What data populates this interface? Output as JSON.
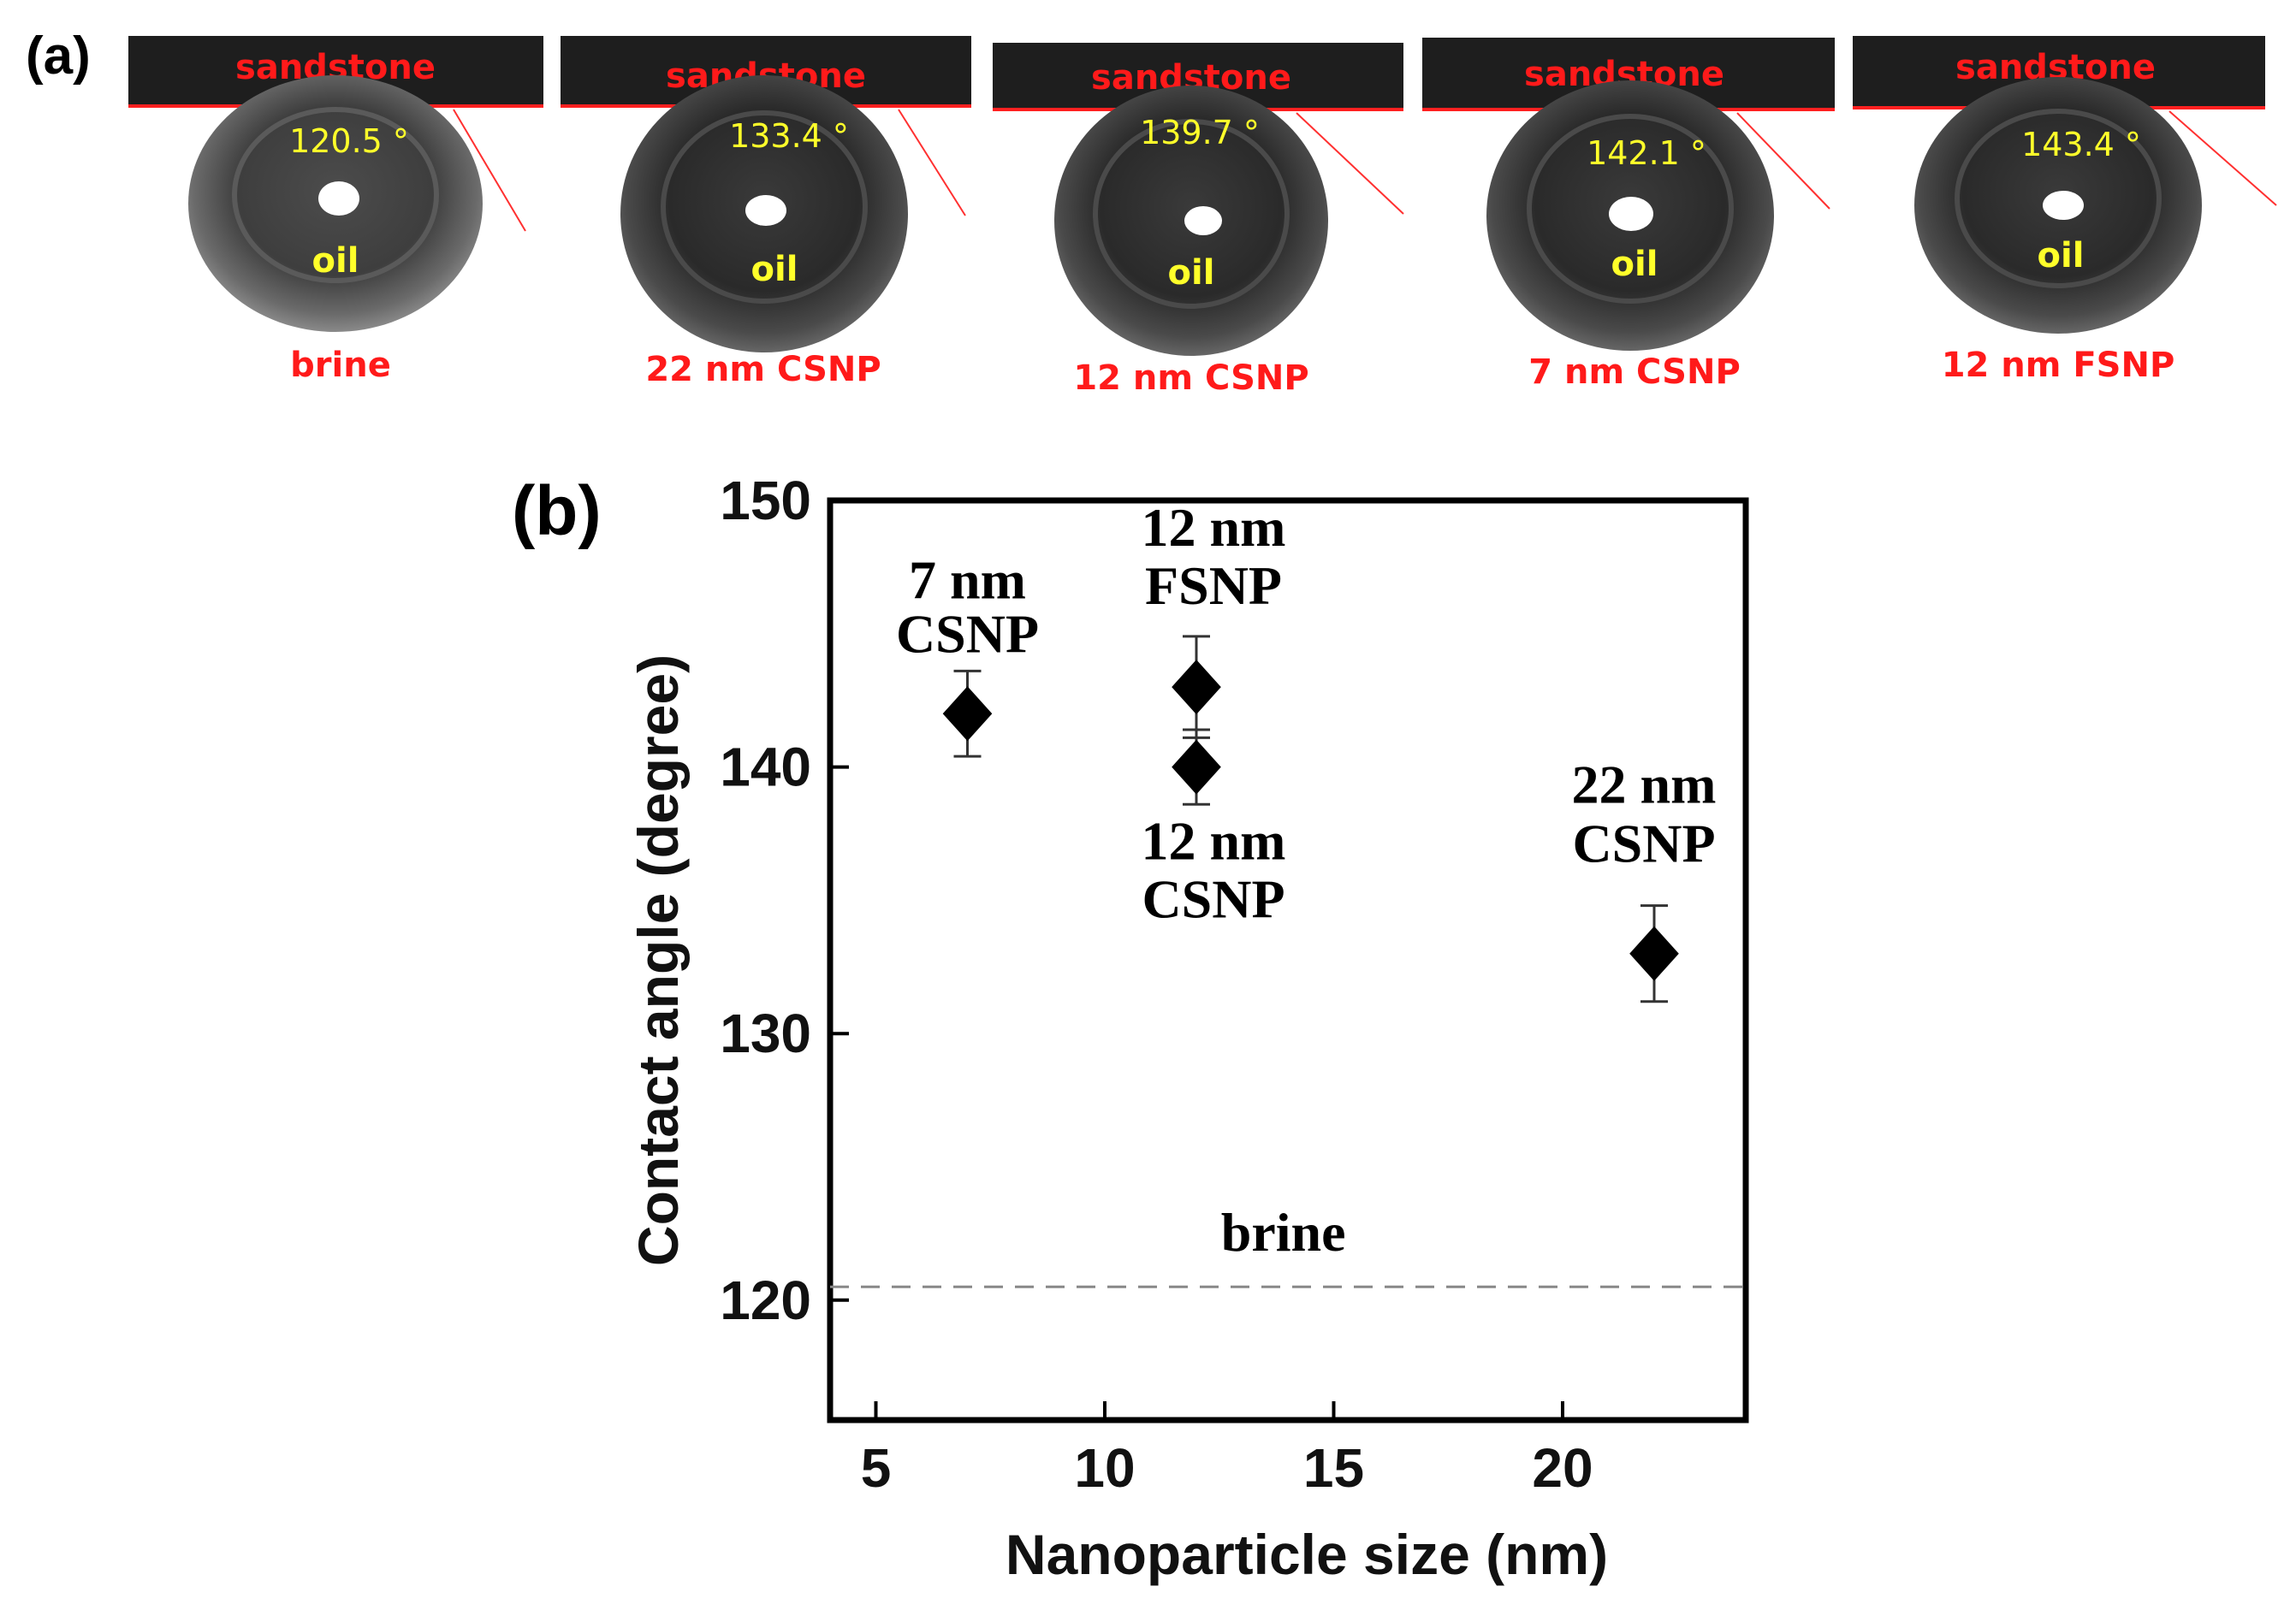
{
  "panel_a": {
    "label": "(a)",
    "surface_label": "sandstone",
    "droplet_label": "oil",
    "images": [
      {
        "condition": "brine",
        "angle_text": "120.5 °"
      },
      {
        "condition": "22 nm CSNP",
        "angle_text": "133.4 °"
      },
      {
        "condition": "12 nm CSNP",
        "angle_text": "139.7 °"
      },
      {
        "condition": "7 nm CSNP",
        "angle_text": "142.1 °"
      },
      {
        "condition": "12 nm FSNP",
        "angle_text": "143.4 °"
      }
    ]
  },
  "colors": {
    "substrate_label": "#ff1a1a",
    "angle_label": "#ffff2a",
    "marker": "#000000",
    "baseline": "#888888"
  },
  "chart_data": {
    "type": "scatter",
    "panel_label": "(b)",
    "xlabel": "Nanoparticle size (nm)",
    "ylabel": "Contact angle (degree)",
    "xlim": [
      4,
      24
    ],
    "ylim": [
      115.5,
      150
    ],
    "xticks": [
      5,
      10,
      15,
      20
    ],
    "yticks": [
      120,
      130,
      140,
      150
    ],
    "grid": false,
    "points": [
      {
        "name": "7 nm CSNP",
        "x": 7,
        "y": 142,
        "err": 1.6,
        "label_lines": [
          "7 nm",
          "CSNP"
        ]
      },
      {
        "name": "12 nm FSNP",
        "x": 12,
        "y": 143,
        "err": 1.9,
        "label_lines": [
          "12 nm",
          "FSNP"
        ]
      },
      {
        "name": "12 nm CSNP",
        "x": 12,
        "y": 140,
        "err": 1.4,
        "label_lines": [
          "12 nm",
          "CSNP"
        ]
      },
      {
        "name": "22 nm CSNP",
        "x": 22,
        "y": 133,
        "err": 1.8,
        "label_lines": [
          "22 nm",
          "CSNP"
        ]
      }
    ],
    "reference_line": {
      "name": "brine",
      "y": 120.5,
      "style": "dashed",
      "label": "brine"
    }
  }
}
